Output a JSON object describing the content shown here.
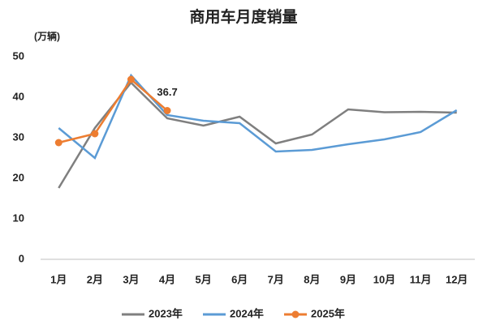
{
  "chart_data": {
    "type": "line",
    "title": "商用车月度销量",
    "y_label": "(万辆)",
    "categories": [
      "1月",
      "2月",
      "3月",
      "4月",
      "5月",
      "6月",
      "7月",
      "8月",
      "9月",
      "10月",
      "11月",
      "12月"
    ],
    "series": [
      {
        "name": "2023年",
        "color": "#7f7f7f",
        "values": [
          17.6,
          32.4,
          43.6,
          34.8,
          33,
          35.2,
          28.6,
          30.8,
          37,
          36.3,
          36.4,
          36.2
        ]
      },
      {
        "name": "2024年",
        "color": "#5b9bd5",
        "values": [
          32.4,
          25,
          45.4,
          35.6,
          34.2,
          33.6,
          26.6,
          27,
          28.4,
          29.6,
          31.4,
          36.8
        ]
      },
      {
        "name": "2025年",
        "color": "#ed7d31",
        "values": [
          28.8,
          31,
          44.4,
          36.7,
          null,
          null,
          null,
          null,
          null,
          null,
          null,
          null
        ]
      }
    ],
    "ylim": [
      0,
      50
    ],
    "yticks": [
      0,
      10,
      20,
      30,
      40,
      50
    ]
  }
}
